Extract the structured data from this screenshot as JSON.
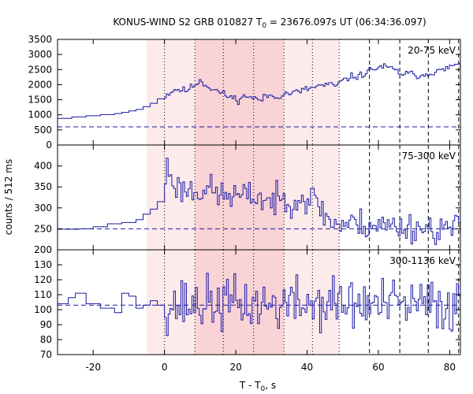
{
  "chart_data": {
    "type": "line",
    "title_prefix": "KONUS-WIND S2 GRB 010827 T",
    "title_sub": "0",
    "title_suffix": " = 23676.097s UT (06:34:36.097)",
    "xlabel_prefix": "T - T",
    "xlabel_sub": "0",
    "xlabel_suffix": ", s",
    "ylabel": "counts / 512 ms",
    "xlim": [
      -30,
      83
    ],
    "xticks": [
      -20,
      0,
      20,
      40,
      60,
      80
    ],
    "shading": {
      "light": [
        -5,
        49
      ],
      "dark": [
        8.5,
        33.5
      ]
    },
    "vlines_dotted": [
      0,
      8.5,
      16.5,
      25,
      33.5,
      41.5,
      49
    ],
    "vlines_dashed": [
      57.5,
      66,
      74,
      82.5
    ],
    "line_color": "#1a1aa6",
    "shade_light_color": "#fdebeb",
    "shade_dark_color": "#f9d3d5",
    "panels": [
      {
        "label": "20-75 keV",
        "ylim": [
          0,
          3500
        ],
        "yticks": [
          0,
          500,
          1000,
          1500,
          2000,
          2500,
          3000,
          3500
        ],
        "background": 600,
        "coarse": [
          [
            -30,
            880
          ],
          [
            -26,
            930
          ],
          [
            -22,
            970
          ],
          [
            -18,
            1010
          ],
          [
            -14,
            1040
          ],
          [
            -12,
            1080
          ],
          [
            -10,
            1130
          ],
          [
            -8,
            1180
          ],
          [
            -6,
            1270
          ],
          [
            -4,
            1380
          ],
          [
            -2,
            1530
          ],
          [
            0,
            1620
          ]
        ],
        "keypoints": [
          [
            0,
            1620
          ],
          [
            3,
            1850
          ],
          [
            6,
            1800
          ],
          [
            8,
            1950
          ],
          [
            10,
            2150
          ],
          [
            12,
            1950
          ],
          [
            15,
            1780
          ],
          [
            18,
            1600
          ],
          [
            21,
            1500
          ],
          [
            23,
            1650
          ],
          [
            25,
            1550
          ],
          [
            27,
            1480
          ],
          [
            29,
            1650
          ],
          [
            31,
            1600
          ],
          [
            34,
            1700
          ],
          [
            37,
            1750
          ],
          [
            40,
            1850
          ],
          [
            43,
            1950
          ],
          [
            46,
            2000
          ],
          [
            48,
            1950
          ],
          [
            49,
            2050
          ],
          [
            52,
            2250
          ],
          [
            55,
            2300
          ],
          [
            58,
            2500
          ],
          [
            61,
            2600
          ],
          [
            64,
            2520
          ],
          [
            66,
            2380
          ],
          [
            69,
            2350
          ],
          [
            72,
            2300
          ],
          [
            75,
            2420
          ],
          [
            78,
            2460
          ],
          [
            81,
            2650
          ],
          [
            83,
            2600
          ]
        ],
        "fine_from": 0,
        "fine_dt": 0.512,
        "noise": 60,
        "seed": 11
      },
      {
        "label": "75-300 keV",
        "ylim": [
          200,
          450
        ],
        "yticks": [
          200,
          250,
          300,
          350,
          400
        ],
        "background": 250,
        "coarse": [
          [
            -30,
            249
          ],
          [
            -24,
            250
          ],
          [
            -20,
            255
          ],
          [
            -16,
            262
          ],
          [
            -12,
            265
          ],
          [
            -8,
            272
          ],
          [
            -6,
            285
          ],
          [
            -4,
            297
          ],
          [
            -2,
            315
          ],
          [
            0,
            325
          ]
        ],
        "keypoints": [
          [
            0,
            330
          ],
          [
            0.5,
            405
          ],
          [
            2,
            370
          ],
          [
            4,
            345
          ],
          [
            6,
            345
          ],
          [
            9,
            340
          ],
          [
            12,
            350
          ],
          [
            14,
            335
          ],
          [
            16,
            330
          ],
          [
            19,
            330
          ],
          [
            22,
            325
          ],
          [
            25,
            330
          ],
          [
            28,
            320
          ],
          [
            31,
            315
          ],
          [
            34,
            318
          ],
          [
            37,
            325
          ],
          [
            40,
            322
          ],
          [
            43,
            318
          ],
          [
            45,
            280
          ],
          [
            48,
            262
          ],
          [
            51,
            262
          ],
          [
            55,
            262
          ],
          [
            59,
            260
          ],
          [
            63,
            257
          ],
          [
            67,
            255
          ],
          [
            71,
            253
          ],
          [
            75,
            250
          ],
          [
            79,
            250
          ],
          [
            83,
            250
          ]
        ],
        "fine_from": 0,
        "fine_dt": 0.512,
        "noise": 18,
        "seed": 23
      },
      {
        "label": "300-1136 keV",
        "ylim": [
          70,
          140
        ],
        "yticks": [
          70,
          80,
          90,
          100,
          110,
          120,
          130
        ],
        "background": 103,
        "coarse": [
          [
            -30,
            104
          ],
          [
            -27,
            108
          ],
          [
            -25,
            111
          ],
          [
            -22,
            104
          ],
          [
            -18,
            101
          ],
          [
            -14,
            98
          ],
          [
            -12,
            111
          ],
          [
            -10,
            109
          ],
          [
            -8,
            101
          ],
          [
            -6,
            103
          ],
          [
            -4,
            106
          ],
          [
            -2,
            103
          ],
          [
            0,
            101
          ]
        ],
        "keypoints": [
          [
            0,
            103
          ],
          [
            10,
            104
          ],
          [
            20,
            104
          ],
          [
            30,
            103
          ],
          [
            40,
            104
          ],
          [
            50,
            104
          ],
          [
            60,
            103
          ],
          [
            70,
            103
          ],
          [
            83,
            103
          ]
        ],
        "fine_from": 0,
        "fine_dt": 0.512,
        "noise": 9,
        "seed": 37
      }
    ]
  }
}
